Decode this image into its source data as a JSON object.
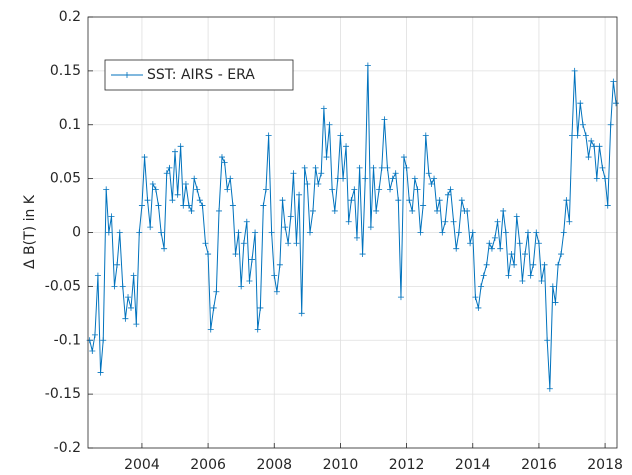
{
  "chart_data": {
    "type": "line",
    "ylabel": "Δ B(T) in K",
    "grid": true,
    "legend": "northwest",
    "xlim": [
      2002.37,
      2018.36
    ],
    "xticks": [
      2004,
      2006,
      2008,
      2010,
      2012,
      2014,
      2016,
      2018
    ],
    "ylim": [
      -0.2,
      0.2
    ],
    "yticks": [
      -0.2,
      -0.15,
      -0.1,
      -0.05,
      0,
      0.05,
      0.1,
      0.15,
      0.2
    ],
    "x": [
      2002.42,
      2002.5,
      2002.58,
      2002.67,
      2002.75,
      2002.83,
      2002.92,
      2003,
      2003.08,
      2003.17,
      2003.25,
      2003.33,
      2003.42,
      2003.5,
      2003.58,
      2003.67,
      2003.75,
      2003.83,
      2003.92,
      2004,
      2004.08,
      2004.17,
      2004.25,
      2004.33,
      2004.42,
      2004.5,
      2004.58,
      2004.67,
      2004.75,
      2004.83,
      2004.92,
      2005,
      2005.08,
      2005.17,
      2005.25,
      2005.33,
      2005.42,
      2005.5,
      2005.58,
      2005.67,
      2005.75,
      2005.83,
      2005.92,
      2006,
      2006.08,
      2006.17,
      2006.25,
      2006.33,
      2006.42,
      2006.5,
      2006.58,
      2006.67,
      2006.75,
      2006.83,
      2006.92,
      2007,
      2007.08,
      2007.17,
      2007.25,
      2007.33,
      2007.42,
      2007.5,
      2007.58,
      2007.67,
      2007.75,
      2007.83,
      2007.92,
      2008,
      2008.08,
      2008.17,
      2008.25,
      2008.33,
      2008.42,
      2008.5,
      2008.58,
      2008.67,
      2008.75,
      2008.83,
      2008.92,
      2009,
      2009.08,
      2009.17,
      2009.25,
      2009.33,
      2009.42,
      2009.5,
      2009.58,
      2009.67,
      2009.75,
      2009.83,
      2009.92,
      2010,
      2010.08,
      2010.17,
      2010.25,
      2010.33,
      2010.42,
      2010.5,
      2010.58,
      2010.67,
      2010.75,
      2010.83,
      2010.92,
      2011,
      2011.08,
      2011.17,
      2011.25,
      2011.33,
      2011.42,
      2011.5,
      2011.58,
      2011.67,
      2011.75,
      2011.83,
      2011.92,
      2012,
      2012.08,
      2012.17,
      2012.25,
      2012.33,
      2012.42,
      2012.5,
      2012.58,
      2012.67,
      2012.75,
      2012.83,
      2012.92,
      2013,
      2013.08,
      2013.17,
      2013.25,
      2013.33,
      2013.42,
      2013.5,
      2013.58,
      2013.67,
      2013.75,
      2013.83,
      2013.92,
      2014,
      2014.08,
      2014.17,
      2014.25,
      2014.33,
      2014.42,
      2014.5,
      2014.58,
      2014.67,
      2014.75,
      2014.83,
      2014.92,
      2015,
      2015.08,
      2015.17,
      2015.25,
      2015.33,
      2015.42,
      2015.5,
      2015.58,
      2015.67,
      2015.75,
      2015.83,
      2015.92,
      2016,
      2016.08,
      2016.17,
      2016.25,
      2016.33,
      2016.42,
      2016.5,
      2016.58,
      2016.67,
      2016.75,
      2016.83,
      2016.92,
      2017,
      2017.08,
      2017.17,
      2017.25,
      2017.33,
      2017.42,
      2017.5,
      2017.58,
      2017.67,
      2017.75,
      2017.83,
      2017.92,
      2018,
      2018.08,
      2018.17,
      2018.25,
      2018.33
    ],
    "series": [
      {
        "name": "SST: AIRS - ERA",
        "color": "#0072bd",
        "values": [
          -0.1,
          -0.11,
          -0.095,
          -0.04,
          -0.13,
          -0.1,
          0.04,
          0.0,
          0.015,
          -0.05,
          -0.03,
          0.0,
          -0.05,
          -0.08,
          -0.06,
          -0.07,
          -0.04,
          -0.085,
          0.0,
          0.025,
          0.07,
          0.03,
          0.005,
          0.045,
          0.04,
          0.025,
          0.0,
          -0.015,
          0.055,
          0.06,
          0.03,
          0.075,
          0.035,
          0.08,
          0.025,
          0.045,
          0.025,
          0.02,
          0.05,
          0.04,
          0.03,
          0.025,
          -0.01,
          -0.02,
          -0.09,
          -0.07,
          -0.055,
          0.02,
          0.07,
          0.065,
          0.04,
          0.05,
          0.025,
          -0.02,
          0.0,
          -0.05,
          -0.01,
          0.01,
          -0.045,
          -0.025,
          0.0,
          -0.09,
          -0.07,
          0.025,
          0.04,
          0.09,
          0.0,
          -0.04,
          -0.055,
          -0.03,
          0.03,
          0.005,
          -0.01,
          0.015,
          0.055,
          -0.01,
          0.035,
          -0.075,
          0.06,
          0.045,
          0.0,
          0.02,
          0.06,
          0.045,
          0.055,
          0.115,
          0.07,
          0.1,
          0.04,
          0.02,
          0.05,
          0.09,
          0.05,
          0.08,
          0.01,
          0.03,
          0.04,
          -0.005,
          0.06,
          -0.02,
          0.05,
          0.155,
          0.005,
          0.06,
          0.02,
          0.04,
          0.06,
          0.105,
          0.06,
          0.04,
          0.05,
          0.055,
          0.03,
          -0.06,
          0.07,
          0.06,
          0.03,
          0.02,
          0.05,
          0.04,
          0.0,
          0.025,
          0.09,
          0.055,
          0.045,
          0.05,
          0.02,
          0.03,
          0.0,
          0.01,
          0.035,
          0.04,
          0.01,
          -0.015,
          0.0,
          0.03,
          0.02,
          0.02,
          -0.01,
          0.0,
          -0.06,
          -0.07,
          -0.05,
          -0.04,
          -0.03,
          -0.01,
          -0.015,
          -0.005,
          0.01,
          -0.015,
          0.02,
          0.0,
          -0.04,
          -0.02,
          -0.03,
          0.015,
          -0.01,
          -0.045,
          -0.02,
          0.0,
          -0.04,
          -0.03,
          0.0,
          -0.01,
          -0.045,
          -0.03,
          -0.1,
          -0.145,
          -0.05,
          -0.065,
          -0.03,
          -0.02,
          0.0,
          0.03,
          0.01,
          0.09,
          0.15,
          0.09,
          0.12,
          0.1,
          0.09,
          0.07,
          0.085,
          0.08,
          0.05,
          0.08,
          0.06,
          0.05,
          0.025,
          0.1,
          0.14,
          0.12
        ]
      }
    ]
  }
}
